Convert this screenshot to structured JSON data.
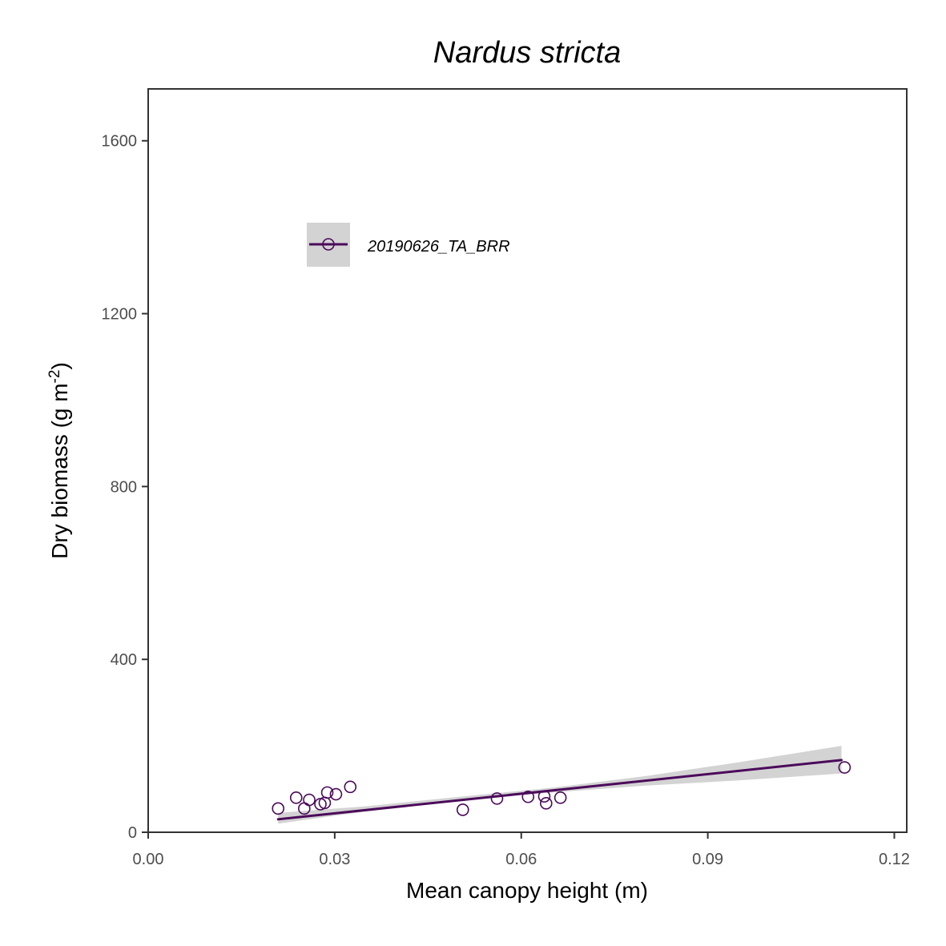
{
  "chart_data": {
    "type": "scatter",
    "title": "Nardus stricta",
    "xlabel": "Mean canopy height (m)",
    "ylabel_main": "Dry biomass (g m",
    "ylabel_sup": "-2",
    "ylabel_close": ")",
    "xlim": [
      0,
      0.122
    ],
    "ylim": [
      0,
      1720
    ],
    "x_ticks": [
      0.0,
      0.03,
      0.06,
      0.09,
      0.12
    ],
    "x_tick_labels": [
      "0.00",
      "0.03",
      "0.06",
      "0.09",
      "0.12"
    ],
    "y_ticks": [
      0,
      400,
      800,
      1200,
      1600
    ],
    "y_tick_labels": [
      "0",
      "400",
      "800",
      "1200",
      "1600"
    ],
    "grid": false,
    "legend": {
      "position": "top-left",
      "entries": [
        "20190626_TA_BRR"
      ]
    },
    "colors": {
      "series": "#4b0a5a",
      "ribbon": "#d3d3d3",
      "axis": "#333333"
    },
    "series": [
      {
        "name": "20190626_TA_BRR",
        "points": [
          {
            "x": 0.0209,
            "y": 55
          },
          {
            "x": 0.0238,
            "y": 80
          },
          {
            "x": 0.0251,
            "y": 55
          },
          {
            "x": 0.0259,
            "y": 75
          },
          {
            "x": 0.0277,
            "y": 65
          },
          {
            "x": 0.0284,
            "y": 68
          },
          {
            "x": 0.0288,
            "y": 92
          },
          {
            "x": 0.0302,
            "y": 88
          },
          {
            "x": 0.0325,
            "y": 105
          },
          {
            "x": 0.0506,
            "y": 52
          },
          {
            "x": 0.0561,
            "y": 78
          },
          {
            "x": 0.0611,
            "y": 82
          },
          {
            "x": 0.0637,
            "y": 83
          },
          {
            "x": 0.064,
            "y": 67
          },
          {
            "x": 0.0663,
            "y": 80
          },
          {
            "x": 0.112,
            "y": 150
          }
        ],
        "fit": {
          "x": [
            0.0209,
            0.1115
          ],
          "y": [
            30,
            167
          ]
        },
        "confidence_band": {
          "x": [
            0.0209,
            0.035,
            0.05,
            0.065,
            0.08,
            0.095,
            0.1115
          ],
          "lower": [
            20,
            48,
            75,
            92,
            108,
            120,
            136
          ],
          "upper": [
            45,
            60,
            82,
            103,
            130,
            162,
            200
          ]
        }
      }
    ]
  }
}
